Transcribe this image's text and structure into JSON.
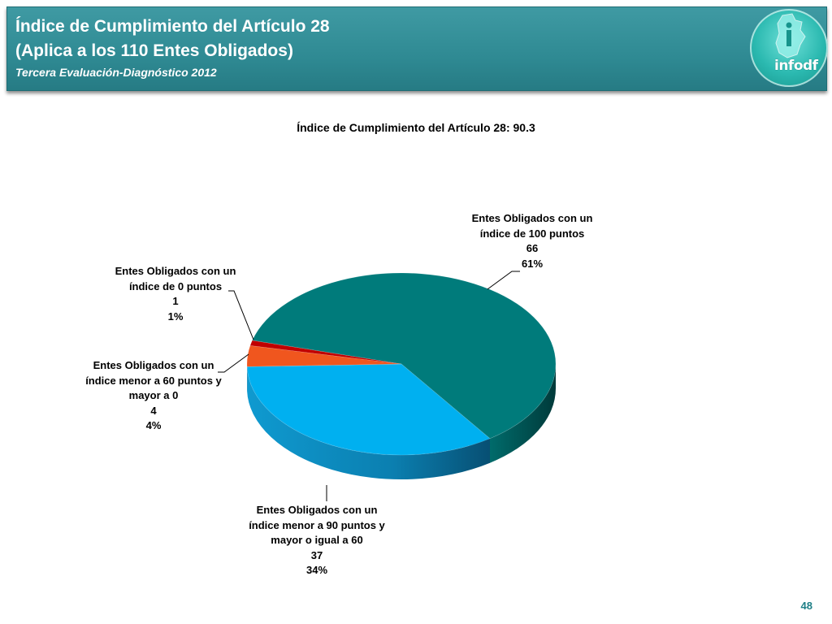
{
  "header": {
    "title_line1": "Índice de Cumplimiento del Artículo 28",
    "title_line2": "(Aplica a los 110 Entes Obligados)",
    "subtitle": "Tercera Evaluación-Diagnóstico 2012",
    "logo_text": "infodf",
    "logo_icon": "df-map-logo-icon"
  },
  "colors": {
    "header_bg": "#2f8a93",
    "teal": "#007b7b",
    "sky": "#00b0f0",
    "orange": "#f0561e",
    "red": "#c00000"
  },
  "chart_data": {
    "type": "pie",
    "title": "Índice de Cumplimiento del Artículo 28: 90.3",
    "slices": [
      {
        "label_lines": [
          "Entes Obligados con un",
          "índice de 100 puntos"
        ],
        "value": 66,
        "percent": "61%",
        "color": "#007b7b"
      },
      {
        "label_lines": [
          "Entes Obligados con un",
          "índice menor a 90 puntos y",
          "mayor o igual a 60"
        ],
        "value": 37,
        "percent": "34%",
        "color": "#00b0f0"
      },
      {
        "label_lines": [
          "Entes Obligados con un",
          "índice menor a 60 puntos y",
          "mayor a 0"
        ],
        "value": 4,
        "percent": "4%",
        "color": "#f0561e"
      },
      {
        "label_lines": [
          "Entes Obligados con un",
          "índice de 0 puntos"
        ],
        "value": 1,
        "percent": "1%",
        "color": "#c00000"
      }
    ]
  },
  "footer": {
    "page_number": "48"
  }
}
